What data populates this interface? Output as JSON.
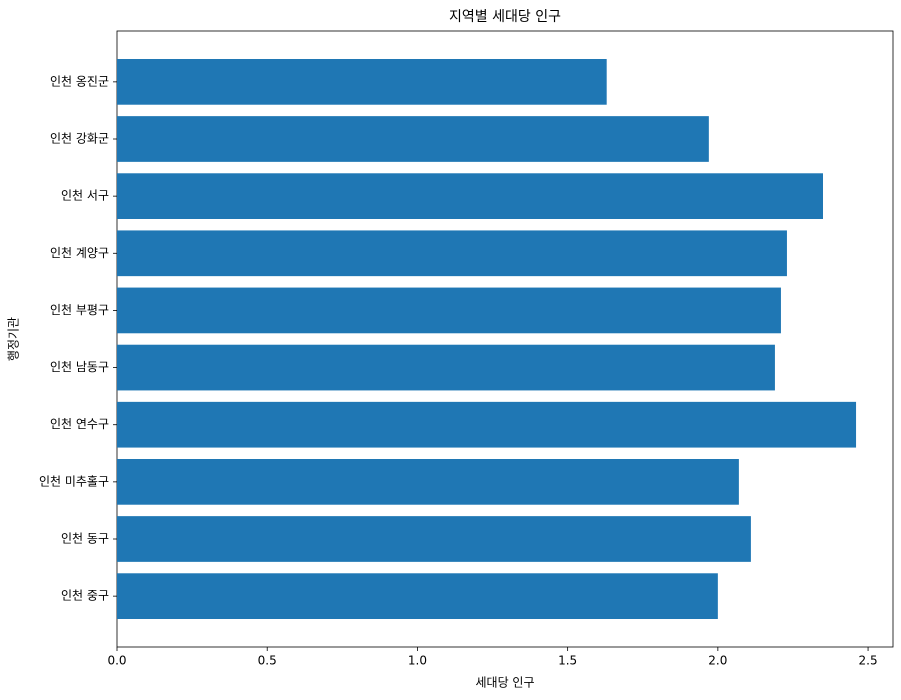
{
  "chart_data": {
    "type": "barh",
    "title": "지역별 세대당 인구",
    "xlabel": "세대당 인구",
    "ylabel": "행정기관",
    "categories": [
      "인천 중구",
      "인천 동구",
      "인천 미추홀구",
      "인천 연수구",
      "인천 남동구",
      "인천 부평구",
      "인천 계양구",
      "인천 서구",
      "인천 강화군",
      "인천 옹진군"
    ],
    "values": [
      2.0,
      2.11,
      2.07,
      2.46,
      2.19,
      2.21,
      2.23,
      2.35,
      1.97,
      1.63
    ],
    "color": "#1f77b4",
    "xlim": [
      0,
      2.583
    ],
    "xticks": [
      {
        "value": 0,
        "label": "0.0"
      },
      0.5,
      {
        "value": 1,
        "label": "1.0"
      },
      1.5,
      {
        "value": 2,
        "label": "2.0"
      },
      2.5
    ],
    "grid": false
  }
}
